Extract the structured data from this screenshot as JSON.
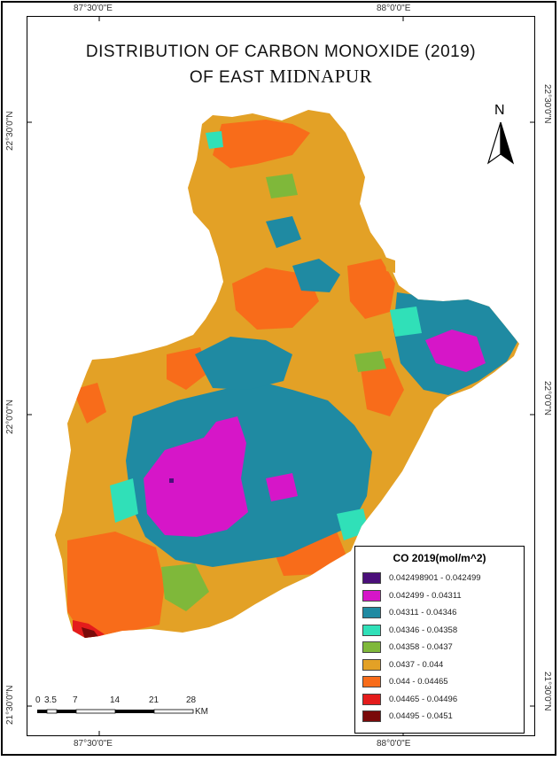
{
  "map": {
    "title_line1": "DISTRIBUTION OF CARBON MONOXIDE (2019)",
    "title_line2_a": "OF EAST ",
    "title_line2_b": "MIDNAPUR",
    "north_label": "N"
  },
  "graticule": {
    "top": [
      "87°30'0\"E",
      "88°0'0\"E"
    ],
    "bottom": [
      "87°30'0\"E",
      "88°0'0\"E"
    ],
    "left": [
      "22°30'0\"N",
      "22°0'0\"N",
      "21°30'0\"N"
    ],
    "right": [
      "22°30'0\"N",
      "22°0'0\"N",
      "21°30'0\"N"
    ]
  },
  "legend": {
    "title": "CO 2019(mol/m^2)",
    "classes": [
      {
        "label": "0.042498901 - 0.042499",
        "color": "#4b0f7a"
      },
      {
        "label": "0.042499 - 0.04311",
        "color": "#d616c8"
      },
      {
        "label": "0.04311 - 0.04346",
        "color": "#1f8aa2"
      },
      {
        "label": "0.04346 - 0.04358",
        "color": "#30e0b8"
      },
      {
        "label": "0.04358 - 0.0437",
        "color": "#7fb83a"
      },
      {
        "label": "0.0437 - 0.044",
        "color": "#e3a126"
      },
      {
        "label": "0.044 - 0.04465",
        "color": "#f86c1a"
      },
      {
        "label": "0.04465 - 0.04496",
        "color": "#e41c1c"
      },
      {
        "label": "0.04495 - 0.0451",
        "color": "#7a0a0a"
      }
    ]
  },
  "scalebar": {
    "labels": [
      "0",
      "3.5",
      "7",
      "14",
      "21",
      "28"
    ],
    "unit": "KM"
  }
}
